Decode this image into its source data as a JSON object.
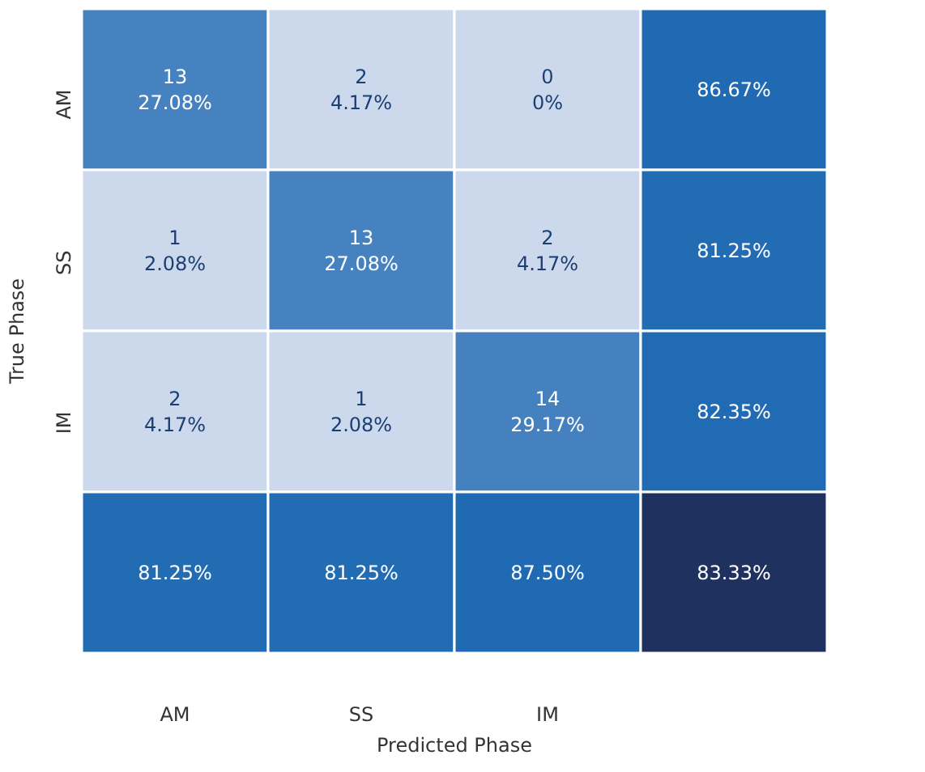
{
  "chart_data": {
    "type": "heatmap",
    "xlabel": "Predicted Phase",
    "ylabel": "True Phase",
    "categories": [
      "AM",
      "SS",
      "IM",
      null
    ],
    "y_categories": [
      "AM",
      "SS",
      "IM",
      null
    ],
    "cells": [
      [
        13,
        2,
        0,
        86.67
      ],
      [
        1,
        13,
        2,
        81.25
      ],
      [
        2,
        1,
        14,
        82.35
      ],
      [
        81.25,
        81.25,
        87.5,
        83.33
      ]
    ],
    "cell_labels": [
      [
        "13",
        "2",
        "0",
        "86.67%"
      ],
      [
        "1",
        "13",
        "2",
        "81.25%"
      ],
      [
        "2",
        "1",
        "14",
        "82.35%"
      ],
      [
        "81.25%",
        "81.25%",
        "87.50%",
        "83.33%"
      ]
    ],
    "annotations": [
      "27.08%",
      "4.17%",
      "0%",
      "2.08%",
      "27.08%",
      "4.17%",
      "4.17%",
      "2.08%",
      "29.17%"
    ],
    "colors": [
      [
        "#2b6fb6",
        "#c3d2ea",
        "#c3d2ea",
        "#1f6ab3"
      ],
      [
        "#c3d2ea",
        "#2b6fb6",
        "#c3d2ea",
        "#1f6ab3"
      ],
      [
        "#c3d2ea",
        "#c3d2ea",
        "#2b6fb6",
        "#1f6ab3"
      ],
      [
        "#1f6ab3",
        "#1f6ab3",
        "#1f6ab3",
        "#1d2f5e"
      ]
    ]
  }
}
